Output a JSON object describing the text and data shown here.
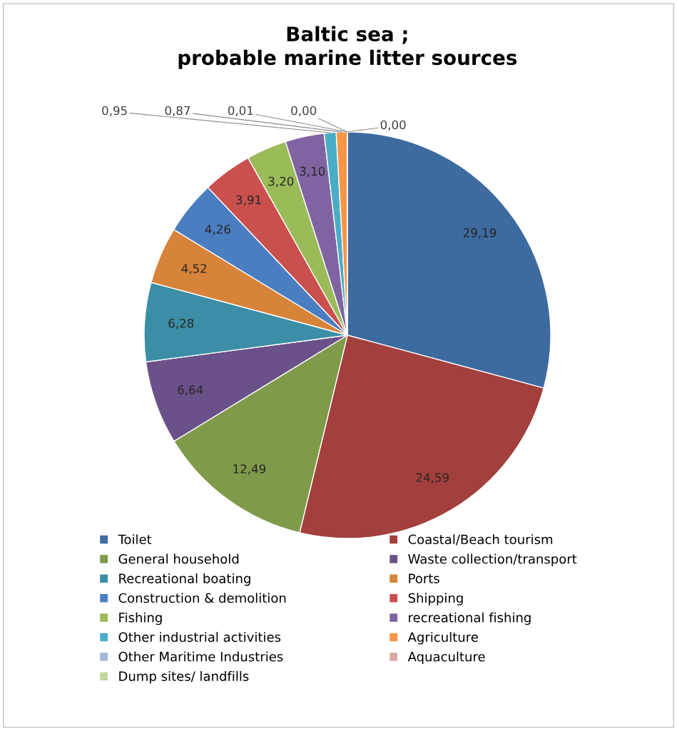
{
  "chart_data": {
    "type": "pie",
    "title": "Baltic sea ;\nprobable marine litter sources",
    "categories": [
      "Toilet",
      "Coastal/Beach tourism",
      "General household",
      "Waste collection/transport",
      "Recreational boating",
      "Ports",
      "Construction & demolition",
      "Shipping",
      "Fishing",
      "recreational fishing",
      "Other industrial activities",
      "Agriculture",
      "Other Maritime Industries",
      "Aquaculture",
      "Dump sites/ landfills"
    ],
    "values": [
      29.19,
      24.59,
      12.49,
      6.64,
      6.28,
      4.52,
      4.26,
      3.91,
      3.2,
      3.1,
      0.95,
      0.87,
      0.01,
      0.0,
      0.0
    ],
    "value_labels": [
      "29,19",
      "24,59",
      "12,49",
      "6,64",
      "6,28",
      "4,52",
      "4,26",
      "3,91",
      "3,20",
      "3,10",
      "0,95",
      "0,87",
      "0,01",
      "0,00",
      "0,00"
    ],
    "colors": [
      "#3d6a9f",
      "#a33f3c",
      "#7f9a48",
      "#6a5189",
      "#3b8ea5",
      "#d7833a",
      "#4a7ec1",
      "#c9504d",
      "#9bbb59",
      "#8064a2",
      "#4bacc6",
      "#f79646",
      "#a5b8dd",
      "#dba8a6",
      "#c3d69b"
    ],
    "legend": "bottom"
  }
}
